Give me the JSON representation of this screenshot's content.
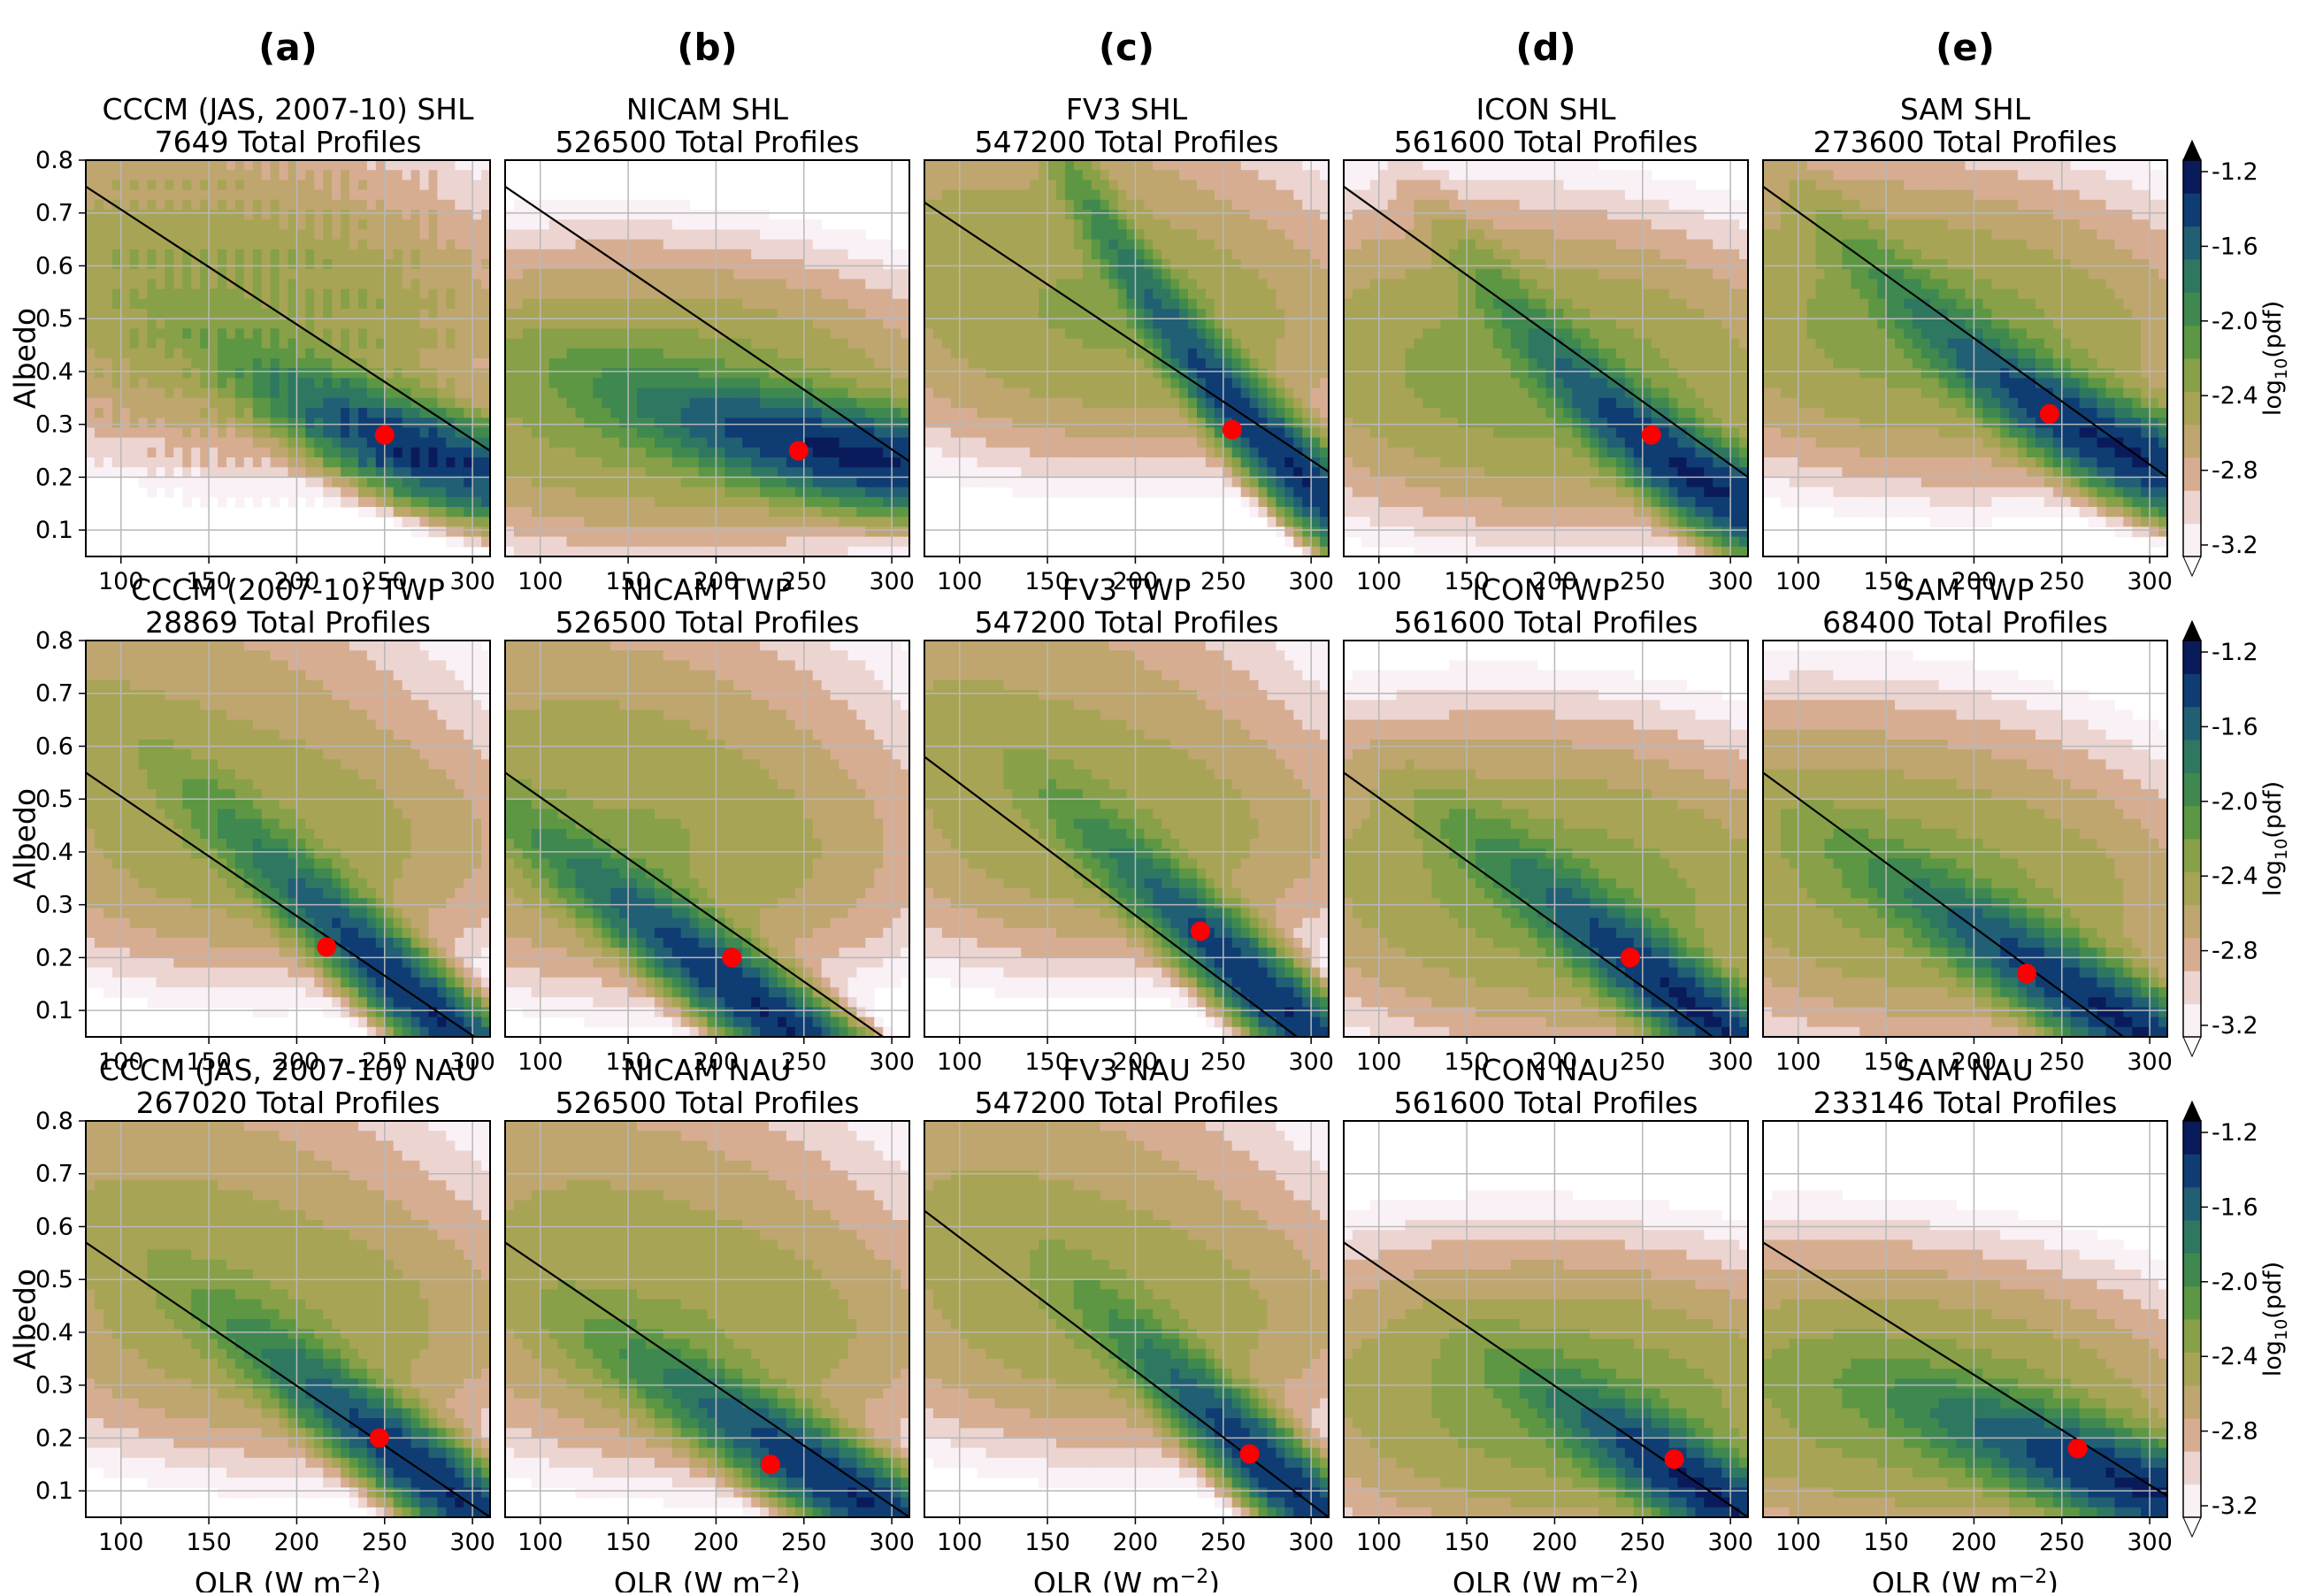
{
  "columns": [
    "(a)",
    "(b)",
    "(c)",
    "(d)",
    "(e)"
  ],
  "colors": {
    "levels": [
      "#f9f1f5",
      "#ecd4d1",
      "#d7ad92",
      "#bea66e",
      "#a8a455",
      "#88a048",
      "#5d9743",
      "#3f8950",
      "#2e7861",
      "#215f75",
      "#0f3d73",
      "#0a1b5c"
    ],
    "point": "#ff0000",
    "line": "#000000",
    "grid": "#b8b8b8"
  },
  "colorbar": {
    "label": "log",
    "label_sub": "10",
    "label_tail": "(pdf)",
    "ticks": [
      "-1.2",
      "-1.6",
      "-2.0",
      "-2.4",
      "-2.8",
      "-3.2"
    ],
    "tick_values": [
      -1.2,
      -1.6,
      -2.0,
      -2.4,
      -2.8,
      -3.2
    ],
    "range": [
      -3.2,
      -1.2
    ],
    "extend": "both"
  },
  "axes": {
    "xlabel": "OLR (W m",
    "xlabel_sup": "−2",
    "xlabel_tail": ")",
    "ylabel": "Albedo",
    "xlim": [
      80,
      310
    ],
    "ylim": [
      0.05,
      0.8
    ],
    "xticks": [
      100,
      150,
      200,
      250,
      300
    ],
    "xtick_labels": [
      "100",
      "150",
      "200",
      "250",
      "300"
    ],
    "yticks": [
      0.1,
      0.2,
      0.3,
      0.4,
      0.5,
      0.6,
      0.7,
      0.8
    ],
    "ytick_labels": [
      "0.1",
      "0.2",
      "0.3",
      "0.4",
      "0.5",
      "0.6",
      "0.7",
      "0.8"
    ],
    "grid": true
  },
  "chart_data": [
    {
      "type": "heatmap",
      "row": 0,
      "col": 0,
      "title": "CCCM (JAS, 2007-10) SHL",
      "subtitle": "7649 Total Profiles",
      "mean": [
        250,
        0.28
      ],
      "line": [
        [
          80,
          0.75
        ],
        [
          310,
          0.25
        ]
      ],
      "peak": [
        275,
        0.24
      ],
      "width": 45,
      "slope": -0.0011,
      "curve": 4e-06,
      "tail": [
        105,
        0.68
      ],
      "noisy": true
    },
    {
      "type": "heatmap",
      "row": 0,
      "col": 1,
      "title": "NICAM SHL",
      "subtitle": "526500 Total Profiles",
      "mean": [
        247,
        0.25
      ],
      "line": [
        [
          80,
          0.75
        ],
        [
          310,
          0.23
        ]
      ],
      "peak": [
        280,
        0.24
      ],
      "width": 60,
      "slope": -0.0006,
      "curve": 2e-06,
      "tail": [
        110,
        0.4
      ]
    },
    {
      "type": "heatmap",
      "row": 0,
      "col": 2,
      "title": "FV3 SHL",
      "subtitle": "547200 Total Profiles",
      "mean": [
        255,
        0.29
      ],
      "line": [
        [
          80,
          0.72
        ],
        [
          310,
          0.21
        ]
      ],
      "peak": [
        295,
        0.2
      ],
      "width": 55,
      "slope": -0.003,
      "curve": 1e-05,
      "tail": [
        100,
        0.72
      ]
    },
    {
      "type": "heatmap",
      "row": 0,
      "col": 3,
      "title": "ICON SHL",
      "subtitle": "561600 Total Profiles",
      "mean": [
        255,
        0.28
      ],
      "line": [
        [
          80,
          0.75
        ],
        [
          310,
          0.2
        ]
      ],
      "peak": [
        285,
        0.19
      ],
      "width": 50,
      "slope": -0.002,
      "curve": 8e-06,
      "tail": [
        140,
        0.5
      ]
    },
    {
      "type": "heatmap",
      "row": 0,
      "col": 4,
      "title": "SAM SHL",
      "subtitle": "273600 Total Profiles",
      "mean": [
        243,
        0.32
      ],
      "line": [
        [
          80,
          0.75
        ],
        [
          310,
          0.2
        ]
      ],
      "peak": [
        285,
        0.25
      ],
      "width": 60,
      "slope": -0.0015,
      "curve": 6e-06,
      "tail": [
        110,
        0.6
      ]
    },
    {
      "type": "heatmap",
      "row": 1,
      "col": 0,
      "title": "CCCM (2007-10) TWP",
      "subtitle": "28869 Total Profiles",
      "mean": [
        217,
        0.22
      ],
      "line": [
        [
          80,
          0.55
        ],
        [
          310,
          0.03
        ]
      ],
      "peak": [
        282,
        0.08
      ],
      "width": 55,
      "slope": -0.003,
      "curve": 0.0,
      "tail": [
        88,
        0.72
      ]
    },
    {
      "type": "heatmap",
      "row": 1,
      "col": 1,
      "title": "NICAM TWP",
      "subtitle": "526500 Total Profiles",
      "mean": [
        209,
        0.2
      ],
      "line": [
        [
          80,
          0.55
        ],
        [
          295,
          0.05
        ]
      ],
      "peak": [
        235,
        0.08
      ],
      "width": 60,
      "slope": -0.0025,
      "curve": 0.0,
      "tail": [
        105,
        0.67
      ]
    },
    {
      "type": "heatmap",
      "row": 1,
      "col": 2,
      "title": "FV3 TWP",
      "subtitle": "547200 Total Profiles",
      "mean": [
        237,
        0.25
      ],
      "line": [
        [
          80,
          0.58
        ],
        [
          292,
          0.05
        ]
      ],
      "peak": [
        285,
        0.1
      ],
      "width": 50,
      "slope": -0.003,
      "curve": 0.0,
      "tail": [
        90,
        0.74
      ]
    },
    {
      "type": "heatmap",
      "row": 1,
      "col": 3,
      "title": "ICON TWP",
      "subtitle": "561600 Total Profiles",
      "mean": [
        243,
        0.2
      ],
      "line": [
        [
          80,
          0.55
        ],
        [
          290,
          0.05
        ]
      ],
      "peak": [
        285,
        0.09
      ],
      "width": 55,
      "slope": -0.0025,
      "curve": 0.0,
      "tail": [
        160,
        0.45
      ]
    },
    {
      "type": "heatmap",
      "row": 1,
      "col": 4,
      "title": "SAM TWP",
      "subtitle": "68400 Total Profiles",
      "mean": [
        230,
        0.17
      ],
      "line": [
        [
          80,
          0.55
        ],
        [
          285,
          0.05
        ]
      ],
      "peak": [
        285,
        0.08
      ],
      "width": 60,
      "slope": -0.002,
      "curve": 0.0,
      "tail": [
        100,
        0.48
      ]
    },
    {
      "type": "heatmap",
      "row": 2,
      "col": 0,
      "title": "CCCM (JAS, 2007-10) NAU",
      "subtitle": "267020 Total Profiles",
      "mean": [
        247,
        0.2
      ],
      "line": [
        [
          80,
          0.57
        ],
        [
          310,
          0.05
        ]
      ],
      "peak": [
        290,
        0.09
      ],
      "width": 55,
      "slope": -0.0025,
      "curve": 0.0,
      "tail": [
        100,
        0.7
      ]
    },
    {
      "type": "heatmap",
      "row": 2,
      "col": 1,
      "title": "NICAM NAU",
      "subtitle": "526500 Total Profiles",
      "mean": [
        231,
        0.15
      ],
      "line": [
        [
          80,
          0.57
        ],
        [
          310,
          0.05
        ]
      ],
      "peak": [
        285,
        0.08
      ],
      "width": 60,
      "slope": -0.002,
      "curve": 0.0,
      "tail": [
        105,
        0.68
      ]
    },
    {
      "type": "heatmap",
      "row": 2,
      "col": 2,
      "title": "FV3 NAU",
      "subtitle": "547200 Total Profiles",
      "mean": [
        265,
        0.17
      ],
      "line": [
        [
          80,
          0.63
        ],
        [
          310,
          0.05
        ]
      ],
      "peak": [
        290,
        0.1
      ],
      "width": 45,
      "slope": -0.003,
      "curve": 0.0,
      "tail": [
        95,
        0.72
      ]
    },
    {
      "type": "heatmap",
      "row": 2,
      "col": 3,
      "title": "ICON NAU",
      "subtitle": "561600 Total Profiles",
      "mean": [
        268,
        0.16
      ],
      "line": [
        [
          80,
          0.57
        ],
        [
          310,
          0.05
        ]
      ],
      "peak": [
        290,
        0.09
      ],
      "width": 45,
      "slope": -0.002,
      "curve": 0.0,
      "tail": [
        170,
        0.35
      ]
    },
    {
      "type": "heatmap",
      "row": 2,
      "col": 4,
      "title": "SAM NAU",
      "subtitle": "233146 Total Profiles",
      "mean": [
        259,
        0.18
      ],
      "line": [
        [
          80,
          0.57
        ],
        [
          310,
          0.09
        ]
      ],
      "peak": [
        300,
        0.1
      ],
      "width": 60,
      "slope": -0.0012,
      "curve": 0.0,
      "tail": [
        90,
        0.35
      ]
    }
  ]
}
